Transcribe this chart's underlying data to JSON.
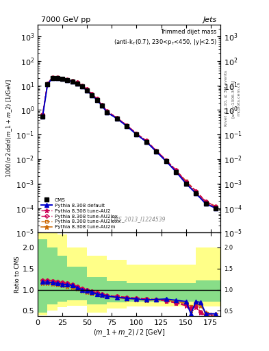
{
  "title_top": "7000 GeV pp",
  "title_right": "Jets",
  "plot_title_line1": "Trimmed dijet mass",
  "plot_title_line2": "(anti-k_{T}(0.7), 230<p_{T}<450, |y|<2.5)",
  "ylabel_main": "1000/σ 2dσ/d(m_1 + m_2) [1/GeV]",
  "ylabel_ratio": "Ratio to CMS",
  "xlabel": "(m_1 + m_2) / 2 [GeV]",
  "cms_note": "CMS_2013_I1224539",
  "rivet_note": "Rivet 3.1.10, ≥ 3M events",
  "arxiv_note": "[arXiv:1306.3436]",
  "mcplots_note": "mcplots.cern.ch",
  "x_data": [
    5,
    10,
    15,
    20,
    25,
    30,
    35,
    40,
    45,
    50,
    55,
    60,
    65,
    70,
    80,
    90,
    100,
    110,
    120,
    130,
    140,
    150,
    160,
    170,
    180
  ],
  "cms_y": [
    0.55,
    11,
    20,
    20,
    18,
    16,
    14,
    12,
    9,
    6,
    4,
    2.5,
    1.5,
    0.8,
    0.45,
    0.22,
    0.1,
    0.05,
    0.02,
    0.008,
    0.003,
    0.001,
    0.0004,
    0.00015,
    0.0001
  ],
  "default_y": [
    0.55,
    11,
    20,
    20,
    18,
    16,
    14,
    12,
    9,
    6,
    4,
    2.5,
    1.5,
    0.8,
    0.45,
    0.22,
    0.1,
    0.05,
    0.02,
    0.008,
    0.003,
    0.001,
    0.0004,
    0.00015,
    0.0001
  ],
  "au2_y": [
    0.65,
    12,
    21,
    21,
    19,
    17,
    15,
    13,
    10,
    7,
    4.5,
    2.8,
    1.6,
    0.9,
    0.48,
    0.24,
    0.11,
    0.055,
    0.022,
    0.009,
    0.0035,
    0.0012,
    0.0005,
    0.00018,
    0.00011
  ],
  "au2lox_y": [
    0.65,
    12,
    21,
    21,
    19,
    17,
    15,
    13,
    10,
    7,
    4.5,
    2.8,
    1.6,
    0.9,
    0.48,
    0.24,
    0.11,
    0.055,
    0.022,
    0.009,
    0.0035,
    0.0012,
    0.0005,
    0.00018,
    0.00012
  ],
  "au2loxx_y": [
    0.65,
    12,
    21,
    21,
    19,
    17,
    15,
    13,
    10,
    7,
    4.5,
    2.8,
    1.6,
    0.9,
    0.48,
    0.24,
    0.11,
    0.055,
    0.022,
    0.009,
    0.0035,
    0.0013,
    0.0005,
    0.00019,
    0.00012
  ],
  "au2m_y": [
    0.57,
    11.5,
    20.5,
    20.5,
    18.5,
    16.5,
    14.5,
    12.5,
    9.5,
    6.5,
    4.2,
    2.6,
    1.55,
    0.82,
    0.46,
    0.23,
    0.105,
    0.052,
    0.021,
    0.0082,
    0.0032,
    0.0011,
    0.00042,
    0.00016,
    0.0001
  ],
  "ratio_x": [
    5,
    10,
    15,
    20,
    25,
    30,
    35,
    40,
    45,
    50,
    55,
    60,
    65,
    70,
    80,
    90,
    100,
    110,
    120,
    130,
    140,
    150,
    155,
    160,
    165,
    170,
    180
  ],
  "ratio_default": [
    1.18,
    1.18,
    1.17,
    1.15,
    1.13,
    1.12,
    1.1,
    1.05,
    1.0,
    0.97,
    0.94,
    0.9,
    0.88,
    0.85,
    0.82,
    0.8,
    0.78,
    0.76,
    0.77,
    0.78,
    0.75,
    0.72,
    0.43,
    0.72,
    0.7,
    0.43,
    0.43
  ],
  "ratio_au2": [
    1.22,
    1.22,
    1.21,
    1.19,
    1.17,
    1.15,
    1.12,
    1.08,
    1.02,
    0.99,
    0.96,
    0.93,
    0.9,
    0.87,
    0.84,
    0.82,
    0.8,
    0.78,
    0.77,
    0.73,
    0.68,
    0.62,
    0.56,
    0.58,
    0.45,
    0.38,
    0.35
  ],
  "ratio_au2lox": [
    1.22,
    1.22,
    1.21,
    1.19,
    1.17,
    1.15,
    1.12,
    1.08,
    1.02,
    0.99,
    0.96,
    0.93,
    0.9,
    0.87,
    0.84,
    0.82,
    0.8,
    0.78,
    0.77,
    0.74,
    0.69,
    0.65,
    0.57,
    0.6,
    0.47,
    0.42,
    0.38
  ],
  "ratio_au2loxx": [
    1.22,
    1.22,
    1.21,
    1.19,
    1.17,
    1.15,
    1.12,
    1.08,
    1.02,
    0.99,
    0.96,
    0.93,
    0.9,
    0.87,
    0.84,
    0.82,
    0.8,
    0.78,
    0.77,
    0.74,
    0.69,
    0.65,
    0.6,
    0.62,
    0.47,
    0.4,
    0.38
  ],
  "ratio_au2m": [
    1.15,
    1.15,
    1.14,
    1.12,
    1.1,
    1.08,
    1.06,
    1.02,
    0.98,
    0.95,
    0.92,
    0.89,
    0.87,
    0.84,
    0.81,
    0.79,
    0.77,
    0.75,
    0.76,
    0.75,
    0.72,
    0.68,
    0.5,
    0.68,
    0.62,
    0.45,
    0.42
  ],
  "band_x_edges": [
    0,
    10,
    20,
    30,
    50,
    70,
    90,
    130,
    160,
    185
  ],
  "yellow_lo": [
    0.4,
    0.5,
    0.58,
    0.62,
    0.45,
    0.55,
    0.6,
    0.6,
    0.6,
    0.6
  ],
  "yellow_hi": [
    2.5,
    2.5,
    2.3,
    2.0,
    1.8,
    1.7,
    1.6,
    1.6,
    2.0,
    2.2
  ],
  "green_lo": [
    0.45,
    0.65,
    0.72,
    0.75,
    0.65,
    0.7,
    0.72,
    0.72,
    0.72,
    0.72
  ],
  "green_hi": [
    2.2,
    2.0,
    1.8,
    1.55,
    1.3,
    1.2,
    1.15,
    1.15,
    1.22,
    1.6
  ],
  "color_default": "#0000cc",
  "color_au2": "#cc0055",
  "color_au2lox": "#cc0055",
  "color_au2loxx": "#cc6600",
  "color_au2m": "#cc6600",
  "color_cms": "#000000",
  "bg_color": "#ffffff",
  "xlim": [
    0,
    185
  ],
  "ylim_main": [
    1e-05,
    3000
  ],
  "ylim_ratio": [
    0.38,
    2.35
  ]
}
